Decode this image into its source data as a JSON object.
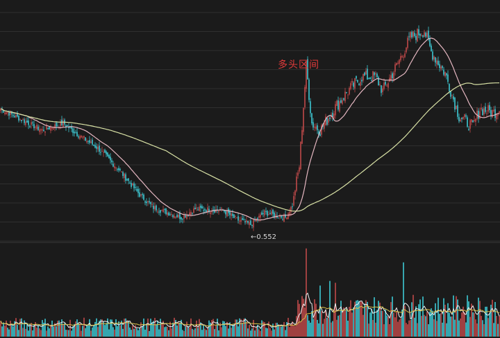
{
  "chart_data": {
    "type": "candlestick",
    "annotations": {
      "region_label": "多头区间",
      "low_label": "←0.552",
      "low_value": 0.552
    },
    "colors": {
      "background": "#1b1b1b",
      "grid": "#2f2f2f",
      "up": "#c0494a",
      "down": "#3ec8d4",
      "ma_short": "#e6b8c2",
      "ma_long": "#d9e2a6",
      "vol_ma_short": "#f2f2f2",
      "vol_ma_long": "#d9c24a"
    },
    "price_panel": {
      "ylim": [
        0.535,
        0.855
      ]
    },
    "volume_panel": {
      "ylim": [
        0,
        100
      ]
    },
    "grid": true,
    "series": [
      {
        "name": "",
        "key": "ohlc",
        "anchors": [
          [
            0,
            0.72
          ],
          [
            15,
            0.705
          ],
          [
            30,
            0.69
          ],
          [
            45,
            0.7
          ],
          [
            55,
            0.685
          ],
          [
            70,
            0.665
          ],
          [
            85,
            0.635
          ],
          [
            100,
            0.6
          ],
          [
            110,
            0.582
          ],
          [
            120,
            0.575
          ],
          [
            130,
            0.568
          ],
          [
            140,
            0.58
          ],
          [
            160,
            0.578
          ],
          [
            170,
            0.565
          ],
          [
            180,
            0.558
          ],
          [
            190,
            0.575
          ],
          [
            200,
            0.57
          ],
          [
            205,
            0.568
          ],
          [
            210,
            0.585
          ],
          [
            215,
            0.64
          ],
          [
            220,
            0.78
          ],
          [
            224,
            0.7
          ],
          [
            230,
            0.69
          ],
          [
            240,
            0.72
          ],
          [
            250,
            0.745
          ],
          [
            260,
            0.765
          ],
          [
            270,
            0.765
          ],
          [
            275,
            0.745
          ],
          [
            285,
            0.78
          ],
          [
            295,
            0.82
          ],
          [
            305,
            0.83
          ],
          [
            310,
            0.8
          ],
          [
            320,
            0.77
          ],
          [
            330,
            0.71
          ],
          [
            340,
            0.695
          ],
          [
            345,
            0.72
          ],
          [
            355,
            0.715
          ],
          [
            359,
            0.72
          ]
        ]
      },
      {
        "name": "",
        "key": "volume",
        "base": 12,
        "spike_idx": [
          220,
          230,
          237,
          241,
          290,
          297,
          302,
          337,
          344
        ],
        "spike_vals": [
          95,
          55,
          60,
          58,
          80,
          45,
          40,
          38,
          42
        ]
      }
    ]
  }
}
